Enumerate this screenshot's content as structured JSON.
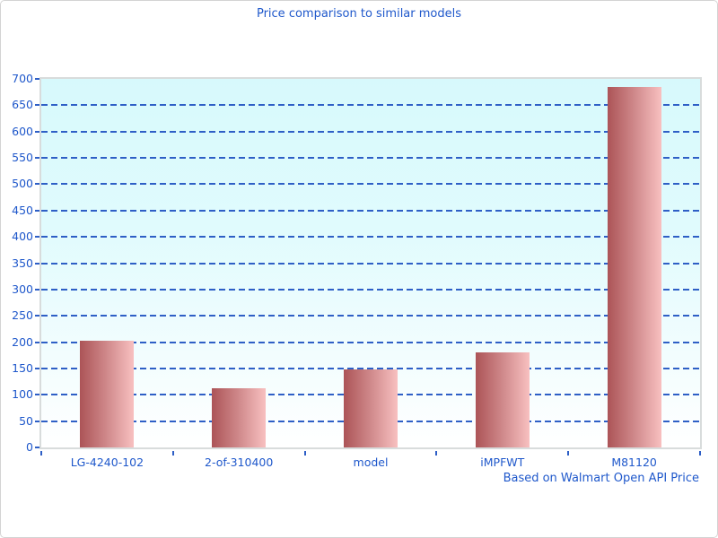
{
  "chart_data": {
    "type": "bar",
    "title": "Price comparison to similar models",
    "caption": "Based on Walmart Open API Price",
    "categories": [
      "LG-4240-102",
      "2-of-310400",
      "model",
      "iMPFWT",
      "M81120"
    ],
    "values": [
      202,
      113,
      149,
      181,
      685
    ],
    "xlabel": "",
    "ylabel": "",
    "ylim": [
      0,
      700
    ],
    "ytick_step": 50,
    "grid": "horizontal-dashed",
    "legend": "none",
    "colors": {
      "text_blue": "#1f58cb",
      "grid_blue": "#2e5fc6",
      "axis_frame": "#d8dcdc",
      "outer_frame": "#d4d4d4",
      "plot_bg_top": "#d7f9fc",
      "plot_bg_bottom": "#ffffff",
      "bar_gradient_left": "#ac5457",
      "bar_gradient_mid": "#d18b8d",
      "bar_gradient_right": "#f8c0c0"
    }
  }
}
